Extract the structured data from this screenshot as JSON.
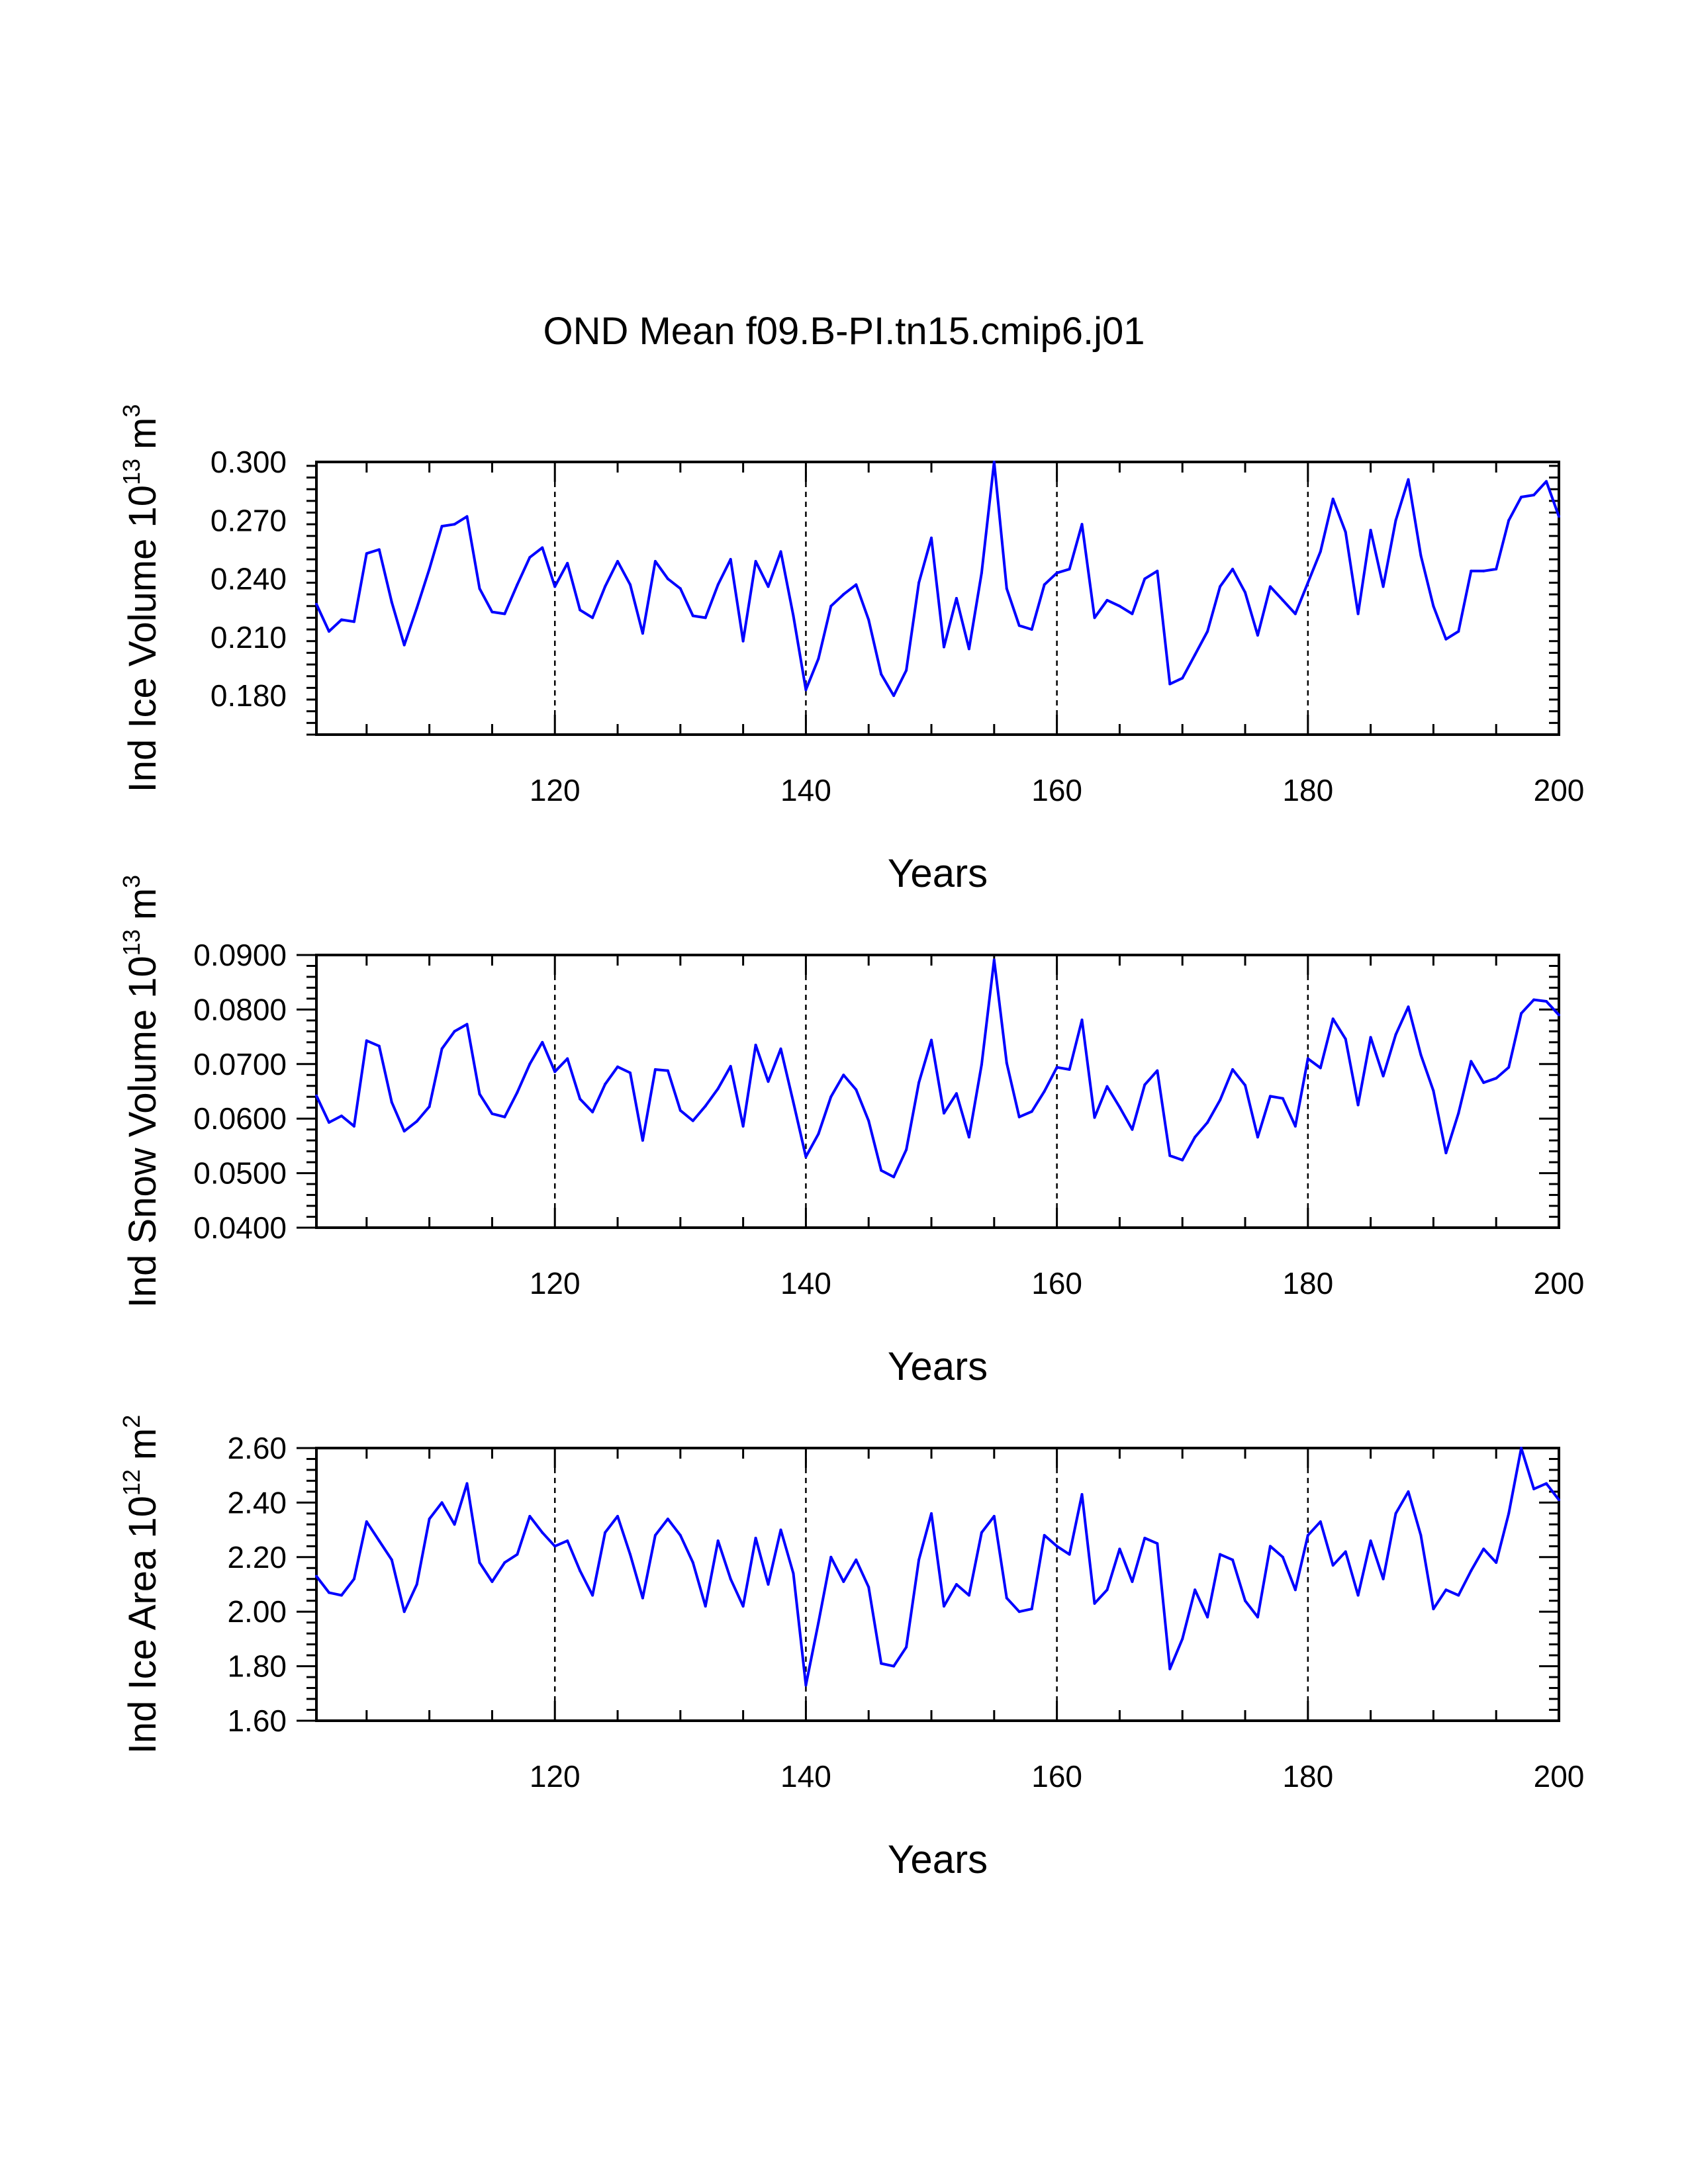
{
  "page_title": "OND Mean f09.B-PI.tn15.cmip6.j01",
  "line_color": "#0000ff",
  "chart_data": [
    {
      "type": "line",
      "xlabel": "Years",
      "ylabel": "Ind Ice Volume 10",
      "ylabel_exponent": "13",
      "ylabel_unit": "m",
      "ylabel_unit_exponent": "3",
      "xlim": [
        101,
        200
      ],
      "ylim": [
        0.16,
        0.3
      ],
      "yticks": [
        0.18,
        0.21,
        0.24,
        0.27,
        0.3
      ],
      "ytick_labels": [
        "0.180",
        "0.210",
        "0.240",
        "0.270",
        "0.300"
      ],
      "xticks": [
        120,
        140,
        160,
        180,
        200
      ],
      "xtick_labels": [
        "120",
        "140",
        "160",
        "180",
        "200"
      ],
      "gridlines_x": [
        120,
        140,
        160,
        180
      ],
      "series": [
        {
          "name": "Ind Ice Volume",
          "x_start": 101,
          "values": [
            0.227,
            0.213,
            0.219,
            0.218,
            0.253,
            0.255,
            0.228,
            0.206,
            0.225,
            0.245,
            0.267,
            0.268,
            0.272,
            0.235,
            0.223,
            0.222,
            0.237,
            0.251,
            0.256,
            0.236,
            0.248,
            0.224,
            0.22,
            0.236,
            0.249,
            0.237,
            0.212,
            0.249,
            0.24,
            0.235,
            0.221,
            0.22,
            0.237,
            0.25,
            0.208,
            0.249,
            0.236,
            0.254,
            0.221,
            0.183,
            0.199,
            0.226,
            0.232,
            0.237,
            0.219,
            0.191,
            0.18,
            0.193,
            0.238,
            0.261,
            0.205,
            0.23,
            0.204,
            0.243,
            0.3,
            0.235,
            0.216,
            0.214,
            0.237,
            0.243,
            0.245,
            0.268,
            0.22,
            0.229,
            0.226,
            0.222,
            0.24,
            0.244,
            0.186,
            0.189,
            0.201,
            0.213,
            0.236,
            0.245,
            0.233,
            0.211,
            0.236,
            0.229,
            0.222,
            0.238,
            0.254,
            0.281,
            0.264,
            0.222,
            0.265,
            0.236,
            0.27,
            0.291,
            0.252,
            0.226,
            0.209,
            0.213,
            0.244,
            0.244,
            0.245,
            0.27,
            0.282,
            0.283,
            0.29,
            0.272
          ]
        }
      ]
    },
    {
      "type": "line",
      "xlabel": "Years",
      "ylabel": "Ind Snow Volume 10",
      "ylabel_exponent": "13",
      "ylabel_unit": "m",
      "ylabel_unit_exponent": "3",
      "xlim": [
        101,
        200
      ],
      "ylim": [
        0.04,
        0.09
      ],
      "yticks": [
        0.04,
        0.05,
        0.06,
        0.07,
        0.08,
        0.09
      ],
      "ytick_labels": [
        "0.0400",
        "0.0500",
        "0.0600",
        "0.0700",
        "0.0800",
        "0.0900"
      ],
      "xticks": [
        120,
        140,
        160,
        180,
        200
      ],
      "xtick_labels": [
        "120",
        "140",
        "160",
        "180",
        "200"
      ],
      "gridlines_x": [
        120,
        140,
        160,
        180
      ],
      "series": [
        {
          "name": "Ind Snow Volume",
          "x_start": 101,
          "values": [
            0.0642,
            0.0593,
            0.0605,
            0.0586,
            0.0743,
            0.0733,
            0.063,
            0.0577,
            0.0595,
            0.0622,
            0.0728,
            0.076,
            0.0773,
            0.0645,
            0.0609,
            0.0603,
            0.0648,
            0.07,
            0.074,
            0.0686,
            0.071,
            0.0636,
            0.0612,
            0.0663,
            0.0695,
            0.0684,
            0.056,
            0.069,
            0.0688,
            0.0615,
            0.0596,
            0.0623,
            0.0655,
            0.0696,
            0.0586,
            0.0735,
            0.0668,
            0.0728,
            0.063,
            0.053,
            0.0572,
            0.064,
            0.068,
            0.0653,
            0.0596,
            0.0505,
            0.0493,
            0.0543,
            0.0666,
            0.0744,
            0.061,
            0.0646,
            0.0566,
            0.0699,
            0.0891,
            0.0702,
            0.0603,
            0.0613,
            0.065,
            0.0694,
            0.069,
            0.0781,
            0.0602,
            0.0659,
            0.0621,
            0.058,
            0.0662,
            0.0688,
            0.0532,
            0.0524,
            0.0566,
            0.0593,
            0.0634,
            0.069,
            0.0661,
            0.0566,
            0.0641,
            0.0637,
            0.0586,
            0.071,
            0.0693,
            0.0783,
            0.0746,
            0.0625,
            0.0749,
            0.0678,
            0.0754,
            0.0805,
            0.0717,
            0.0651,
            0.0537,
            0.061,
            0.0705,
            0.0666,
            0.0674,
            0.0694,
            0.0793,
            0.0818,
            0.0815,
            0.079
          ]
        }
      ]
    },
    {
      "type": "line",
      "xlabel": "Years",
      "ylabel": "Ind Ice Area 10",
      "ylabel_exponent": "12",
      "ylabel_unit": "m",
      "ylabel_unit_exponent": "2",
      "xlim": [
        101,
        200
      ],
      "ylim": [
        1.6,
        2.6
      ],
      "yticks": [
        1.6,
        1.8,
        2.0,
        2.2,
        2.4,
        2.6
      ],
      "ytick_labels": [
        "1.60",
        "1.80",
        "2.00",
        "2.20",
        "2.40",
        "2.60"
      ],
      "xticks": [
        120,
        140,
        160,
        180,
        200
      ],
      "xtick_labels": [
        "120",
        "140",
        "160",
        "180",
        "200"
      ],
      "gridlines_x": [
        120,
        140,
        160,
        180
      ],
      "series": [
        {
          "name": "Ind Ice Area",
          "x_start": 101,
          "values": [
            2.13,
            2.07,
            2.06,
            2.12,
            2.33,
            2.26,
            2.19,
            2.0,
            2.1,
            2.34,
            2.4,
            2.32,
            2.47,
            2.18,
            2.11,
            2.18,
            2.21,
            2.35,
            2.29,
            2.24,
            2.26,
            2.15,
            2.06,
            2.29,
            2.35,
            2.21,
            2.05,
            2.28,
            2.34,
            2.28,
            2.18,
            2.02,
            2.26,
            2.12,
            2.02,
            2.27,
            2.1,
            2.3,
            2.14,
            1.73,
            1.96,
            2.2,
            2.11,
            2.19,
            2.09,
            1.81,
            1.8,
            1.87,
            2.19,
            2.36,
            2.02,
            2.1,
            2.06,
            2.29,
            2.35,
            2.05,
            2.0,
            2.01,
            2.28,
            2.24,
            2.21,
            2.43,
            2.03,
            2.08,
            2.23,
            2.11,
            2.27,
            2.25,
            1.79,
            1.9,
            2.08,
            1.98,
            2.21,
            2.19,
            2.04,
            1.98,
            2.24,
            2.2,
            2.08,
            2.28,
            2.33,
            2.17,
            2.22,
            2.06,
            2.26,
            2.12,
            2.36,
            2.44,
            2.28,
            2.01,
            2.08,
            2.06,
            2.15,
            2.23,
            2.18,
            2.36,
            2.6,
            2.45,
            2.47,
            2.41
          ]
        }
      ]
    }
  ]
}
